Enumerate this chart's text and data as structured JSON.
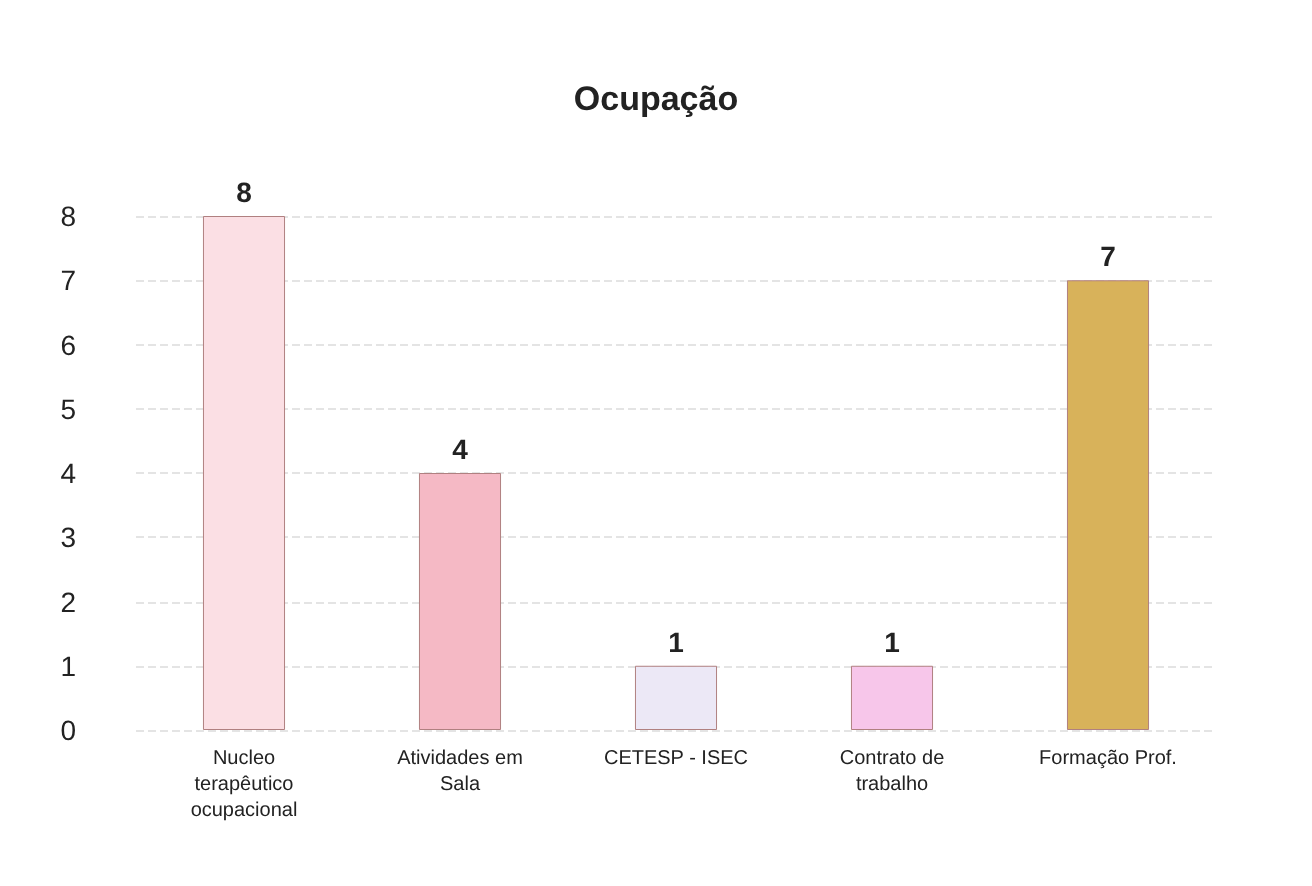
{
  "chart_data": {
    "type": "bar",
    "title": "Ocupação",
    "categories": [
      "Nucleo terapêutico ocupacional",
      "Atividades em Sala",
      "CETESP - ISEC",
      "Contrato de trabalho",
      "Formação Prof."
    ],
    "values": [
      8,
      4,
      1,
      1,
      7
    ],
    "colors": [
      "#fbdfe4",
      "#f5b9c5",
      "#ece8f6",
      "#f7c6ea",
      "#d8b25a"
    ],
    "ylim": [
      0,
      8
    ],
    "yticks": [
      0,
      1,
      2,
      3,
      4,
      5,
      6,
      7,
      8
    ],
    "grid": "y",
    "data_labels": true
  }
}
